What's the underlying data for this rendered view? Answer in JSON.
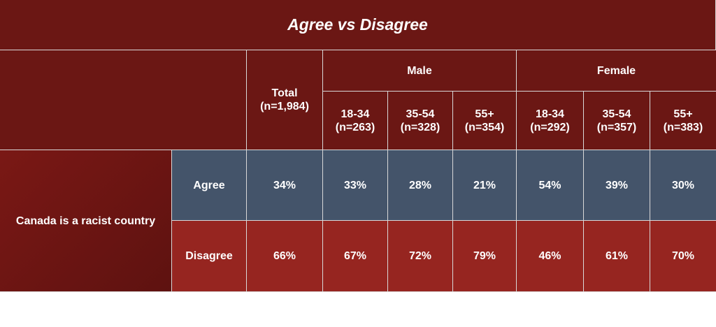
{
  "chart_data": {
    "type": "table",
    "title": "Agree vs Disagree",
    "row_header": "Canada is a racist country",
    "group_headers": [
      "Male",
      "Female"
    ],
    "columns": [
      {
        "label": "Total\n(n=1,984)"
      },
      {
        "group": "Male",
        "label": "18-34\n(n=263)"
      },
      {
        "group": "Male",
        "label": "35-54\n(n=328)"
      },
      {
        "group": "Male",
        "label": "55+\n(n=354)"
      },
      {
        "group": "Female",
        "label": "18-34\n(n=292)"
      },
      {
        "group": "Female",
        "label": "35-54\n(n=357)"
      },
      {
        "group": "Female",
        "label": "55+\n(n=383)"
      }
    ],
    "rows": [
      {
        "label": "Agree",
        "values": [
          "34%",
          "33%",
          "28%",
          "21%",
          "54%",
          "39%",
          "30%"
        ]
      },
      {
        "label": "Disagree",
        "values": [
          "66%",
          "67%",
          "72%",
          "79%",
          "46%",
          "61%",
          "70%"
        ]
      }
    ]
  },
  "colors": {
    "header": "#6b1714",
    "agree_row": "#44546a",
    "disagree_row": "#962520",
    "text": "#ffffff"
  }
}
